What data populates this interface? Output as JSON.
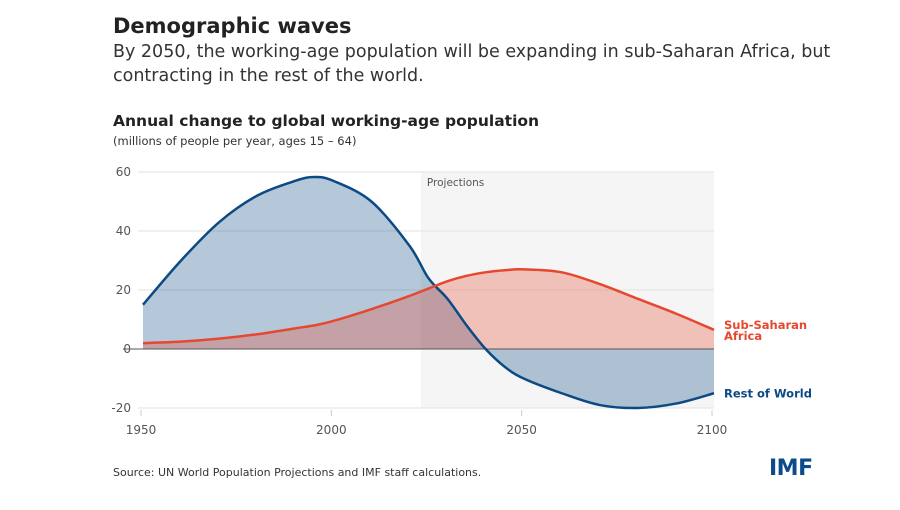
{
  "header": {
    "title": "Demographic waves",
    "subtitle": "By 2050, the working-age population will be expanding in sub-Saharan Africa, but contracting in the rest of the world."
  },
  "footer": {
    "source": "Source: UN World Population Projections and IMF staff calculations.",
    "logo": "IMF"
  },
  "chart_data": {
    "type": "area",
    "title": "Annual change to global working-age population",
    "subtitle": "(millions of people per year, ages 15 – 64)",
    "xlim": [
      1950,
      2100
    ],
    "ylim": [
      -20,
      60
    ],
    "xticks": [
      1950,
      2000,
      2050,
      2100
    ],
    "yticks": [
      -20,
      0,
      20,
      40,
      60
    ],
    "grid": true,
    "projection": {
      "label": "Projections",
      "start": 2023,
      "end": 2100
    },
    "colors": {
      "sub_saharan_africa": "#e5482f",
      "rest_of_world": "#0b4a84",
      "projection_bg": "#f5f5f5"
    },
    "x": [
      1950,
      1960,
      1970,
      1980,
      1990,
      1995,
      2000,
      2010,
      2020,
      2025,
      2030,
      2035,
      2040,
      2045,
      2050,
      2060,
      2070,
      2080,
      2090,
      2100
    ],
    "series": [
      {
        "name": "Rest of World",
        "values": [
          15,
          30,
          43,
          52,
          57,
          58.3,
          57,
          50,
          35,
          24,
          17,
          8,
          0,
          -6,
          -10,
          -15,
          -19,
          -20,
          -18.5,
          -15
        ]
      },
      {
        "name": "Sub-Saharan Africa",
        "values": [
          2,
          2.5,
          3.5,
          5,
          7,
          8,
          9.5,
          13.5,
          18,
          20.5,
          23,
          24.8,
          26,
          26.7,
          27,
          26,
          22,
          17,
          12,
          6.5
        ]
      }
    ],
    "labels": {
      "ssa_line1": "Sub-Saharan",
      "ssa_line2": "Africa",
      "row": "Rest of World"
    }
  }
}
